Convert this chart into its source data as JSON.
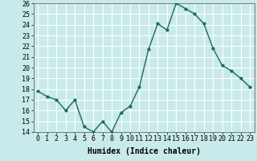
{
  "x": [
    0,
    1,
    2,
    3,
    4,
    5,
    6,
    7,
    8,
    9,
    10,
    11,
    12,
    13,
    14,
    15,
    16,
    17,
    18,
    19,
    20,
    21,
    22,
    23
  ],
  "y": [
    17.8,
    17.3,
    17.0,
    16.0,
    17.0,
    14.5,
    14.0,
    15.0,
    14.0,
    15.8,
    16.4,
    18.2,
    21.7,
    24.1,
    23.5,
    26.0,
    25.5,
    25.0,
    24.1,
    21.8,
    20.2,
    19.7,
    19.0,
    18.2
  ],
  "line_color": "#1a6b5a",
  "marker": "o",
  "marker_size": 2,
  "bg_color": "#c8eaea",
  "grid_color_major": "#ffffff",
  "grid_color_minor": "#e08080",
  "xlabel": "Humidex (Indice chaleur)",
  "ylim": [
    14,
    26
  ],
  "xlim": [
    -0.5,
    23.5
  ],
  "yticks": [
    14,
    15,
    16,
    17,
    18,
    19,
    20,
    21,
    22,
    23,
    24,
    25,
    26
  ],
  "xticks": [
    0,
    1,
    2,
    3,
    4,
    5,
    6,
    7,
    8,
    9,
    10,
    11,
    12,
    13,
    14,
    15,
    16,
    17,
    18,
    19,
    20,
    21,
    22,
    23
  ],
  "xlabel_fontsize": 7,
  "tick_fontsize": 6,
  "linewidth": 1.0
}
